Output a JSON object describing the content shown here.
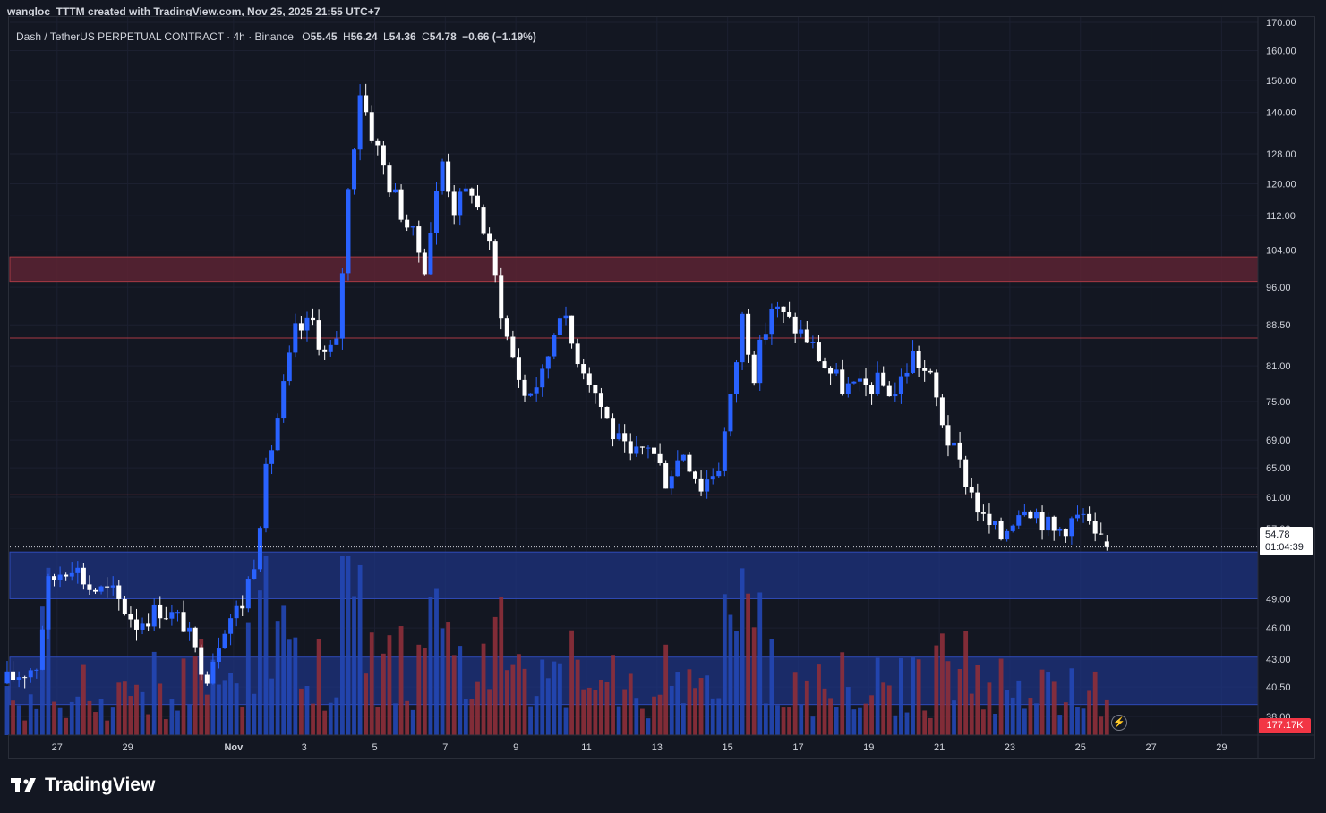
{
  "header": {
    "text": "wangloc_TTTM created with TradingView.com, Nov 25, 2025 21:55 UTC+7"
  },
  "legend": {
    "symbol": "Dash / TetherUS PERPETUAL CONTRACT · 4h · Binance",
    "o_label": "O",
    "o": "55.45",
    "h_label": "H",
    "h": "56.24",
    "l_label": "L",
    "l": "54.36",
    "c_label": "C",
    "c": "54.78",
    "change": "−0.66 (−1.19%)"
  },
  "price_tag": {
    "price": "54.78",
    "countdown": "01:04:39"
  },
  "volume_tag": {
    "value": "177.17K"
  },
  "footer": {
    "brand": "TradingView"
  },
  "colors": {
    "bull": "#2962ff",
    "bear": "#ffffff",
    "background": "#131722",
    "zone_red": "#5c2333",
    "zone_blue": "#1e3380",
    "line_red": "#a83a44",
    "vol_bull": "#2447b5",
    "vol_bear": "#8e2f3a",
    "text": "#d1d4dc",
    "grid": "#1c2030"
  },
  "chart_data": {
    "type": "candlestick",
    "symbol": "DASHUSDT.P",
    "timeframe": "4h",
    "y_scale": "log",
    "ylim": [
      36.5,
      172
    ],
    "y_ticks": [
      "38.00",
      "40.50",
      "43.00",
      "46.00",
      "49.00",
      "57.00",
      "61.00",
      "65.00",
      "69.00",
      "75.00",
      "81.00",
      "88.50",
      "96.00",
      "104.00",
      "112.00",
      "120.00",
      "128.00",
      "140.00",
      "150.00",
      "160.00",
      "170.00"
    ],
    "x_ticks": [
      "27",
      "29",
      "Nov",
      "3",
      "5",
      "7",
      "9",
      "11",
      "13",
      "15",
      "17",
      "19",
      "21",
      "23",
      "25",
      "27",
      "29"
    ],
    "x_range_days": [
      "Oct 25.66",
      "Nov 30.03"
    ],
    "current_price": 54.78,
    "zones": [
      {
        "type": "resistance",
        "low": 97.2,
        "high": 102.5
      },
      {
        "type": "support",
        "low": 49.0,
        "high": 54.2
      },
      {
        "type": "support",
        "low": 39.0,
        "high": 43.2
      }
    ],
    "levels": [
      86.0,
      61.3
    ],
    "anchors": [
      [
        "Oct 25 12:00",
        40.8
      ],
      [
        "Oct 26 12:00",
        42.5
      ],
      [
        "Oct 26 20:00",
        50.5
      ],
      [
        "Oct 27 04:00",
        52.0
      ],
      [
        "Oct 27 12:00",
        53.0
      ],
      [
        "Oct 28 00:00",
        50.2
      ],
      [
        "Oct 28 16:00",
        49.5
      ],
      [
        "Oct 29 08:00",
        46.5
      ],
      [
        "Oct 30 00:00",
        48.0
      ],
      [
        "Oct 30 16:00",
        46.5
      ],
      [
        "Oct 31 00:00",
        43.5
      ],
      [
        "Oct 31 08:00",
        41.8
      ],
      [
        "Oct 31 20:00",
        46.5
      ],
      [
        "Nov 1 08:00",
        48.5
      ],
      [
        "Nov 1 16:00",
        53.5
      ],
      [
        "Nov 2 00:00",
        64.0
      ],
      [
        "Nov 2 08:00",
        72.5
      ],
      [
        "Nov 2 20:00",
        87.0
      ],
      [
        "Nov 3 08:00",
        89.0
      ],
      [
        "Nov 3 16:00",
        83.0
      ],
      [
        "Nov 4 00:00",
        84.5
      ],
      [
        "Nov 4 08:00",
        118.0
      ],
      [
        "Nov 4 16:00",
        147.0
      ],
      [
        "Nov 5 00:00",
        134.0
      ],
      [
        "Nov 5 12:00",
        120.0
      ],
      [
        "Nov 6 00:00",
        110.0
      ],
      [
        "Nov 6 12:00",
        101.0
      ],
      [
        "Nov 7 00:00",
        126.0
      ],
      [
        "Nov 7 08:00",
        114.0
      ],
      [
        "Nov 7 20:00",
        119.0
      ],
      [
        "Nov 8 08:00",
        104.0
      ],
      [
        "Nov 8 20:00",
        86.0
      ],
      [
        "Nov 9 08:00",
        76.0
      ],
      [
        "Nov 9 20:00",
        79.0
      ],
      [
        "Nov 10 08:00",
        92.0
      ],
      [
        "Nov 10 16:00",
        85.0
      ],
      [
        "Nov 11 04:00",
        79.0
      ],
      [
        "Nov 11 20:00",
        70.0
      ],
      [
        "Nov 12 08:00",
        66.0
      ],
      [
        "Nov 12 20:00",
        68.5
      ],
      [
        "Nov 13 08:00",
        63.5
      ],
      [
        "Nov 13 20:00",
        67.5
      ],
      [
        "Nov 14 08:00",
        62.5
      ],
      [
        "Nov 14 20:00",
        65.5
      ],
      [
        "Nov 15 04:00",
        75.0
      ],
      [
        "Nov 15 12:00",
        90.0
      ],
      [
        "Nov 15 20:00",
        80.0
      ],
      [
        "Nov 16 08:00",
        92.0
      ],
      [
        "Nov 16 20:00",
        89.0
      ],
      [
        "Nov 17 08:00",
        86.0
      ],
      [
        "Nov 17 20:00",
        81.0
      ],
      [
        "Nov 18 08:00",
        77.5
      ],
      [
        "Nov 18 20:00",
        77.0
      ],
      [
        "Nov 19 08:00",
        78.0
      ],
      [
        "Nov 19 20:00",
        76.5
      ],
      [
        "Nov 20 08:00",
        83.0
      ],
      [
        "Nov 20 20:00",
        78.5
      ],
      [
        "Nov 21 08:00",
        69.0
      ],
      [
        "Nov 21 20:00",
        63.5
      ],
      [
        "Nov 22 08:00",
        58.0
      ],
      [
        "Nov 22 20:00",
        56.0
      ],
      [
        "Nov 23 04:00",
        58.5
      ],
      [
        "Nov 23 12:00",
        60.5
      ],
      [
        "Nov 23 20:00",
        59.0
      ],
      [
        "Nov 24 08:00",
        56.5
      ],
      [
        "Nov 24 20:00",
        58.0
      ],
      [
        "Nov 25 04:00",
        58.5
      ],
      [
        "Nov 25 12:00",
        55.5
      ],
      [
        "Nov 25 20:00",
        54.78
      ]
    ]
  }
}
